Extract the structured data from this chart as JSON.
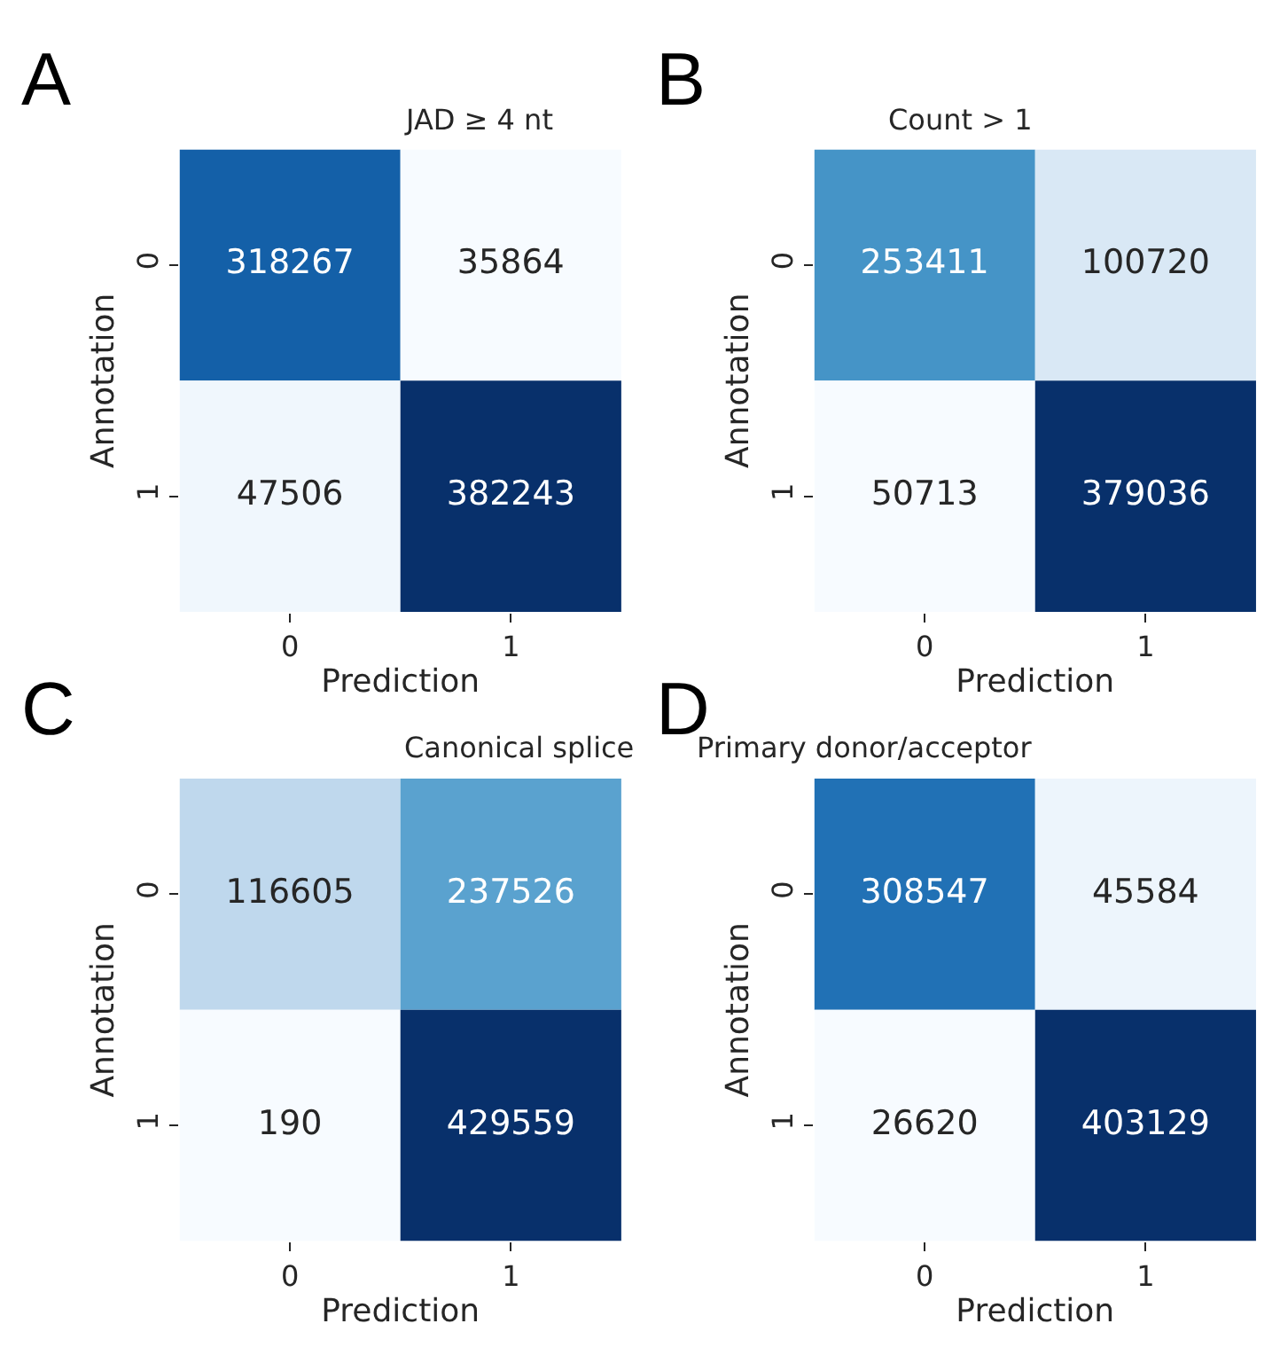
{
  "chart_data": [
    {
      "type": "heatmap",
      "title": "JAD ≥ 4 nt",
      "xlabel": "Prediction",
      "ylabel": "Annotation",
      "annotations": [
        "A"
      ],
      "categories": [
        "0",
        "1"
      ],
      "y_categories": [
        "0",
        "1"
      ],
      "cells": [
        [
          318267,
          35864
        ],
        [
          47506,
          382243
        ]
      ],
      "data_labels": true
    },
    {
      "type": "heatmap",
      "title": "Count > 1",
      "xlabel": "Prediction",
      "ylabel": "Annotation",
      "annotations": [
        "B"
      ],
      "categories": [
        "0",
        "1"
      ],
      "y_categories": [
        "0",
        "1"
      ],
      "cells": [
        [
          253411,
          100720
        ],
        [
          50713,
          379036
        ]
      ],
      "data_labels": true
    },
    {
      "type": "heatmap",
      "title": "Canonical splice",
      "xlabel": "Prediction",
      "ylabel": "Annotation",
      "annotations": [
        "C"
      ],
      "categories": [
        "0",
        "1"
      ],
      "y_categories": [
        "0",
        "1"
      ],
      "cells": [
        [
          116605,
          237526
        ],
        [
          190,
          429559
        ]
      ],
      "data_labels": true
    },
    {
      "type": "heatmap",
      "title": "Primary donor/acceptor",
      "xlabel": "Prediction",
      "ylabel": "Annotation",
      "annotations": [
        "D"
      ],
      "categories": [
        "0",
        "1"
      ],
      "y_categories": [
        "0",
        "1"
      ],
      "cells": [
        [
          308547,
          45584
        ],
        [
          26620,
          403129
        ]
      ],
      "data_labels": true
    }
  ]
}
